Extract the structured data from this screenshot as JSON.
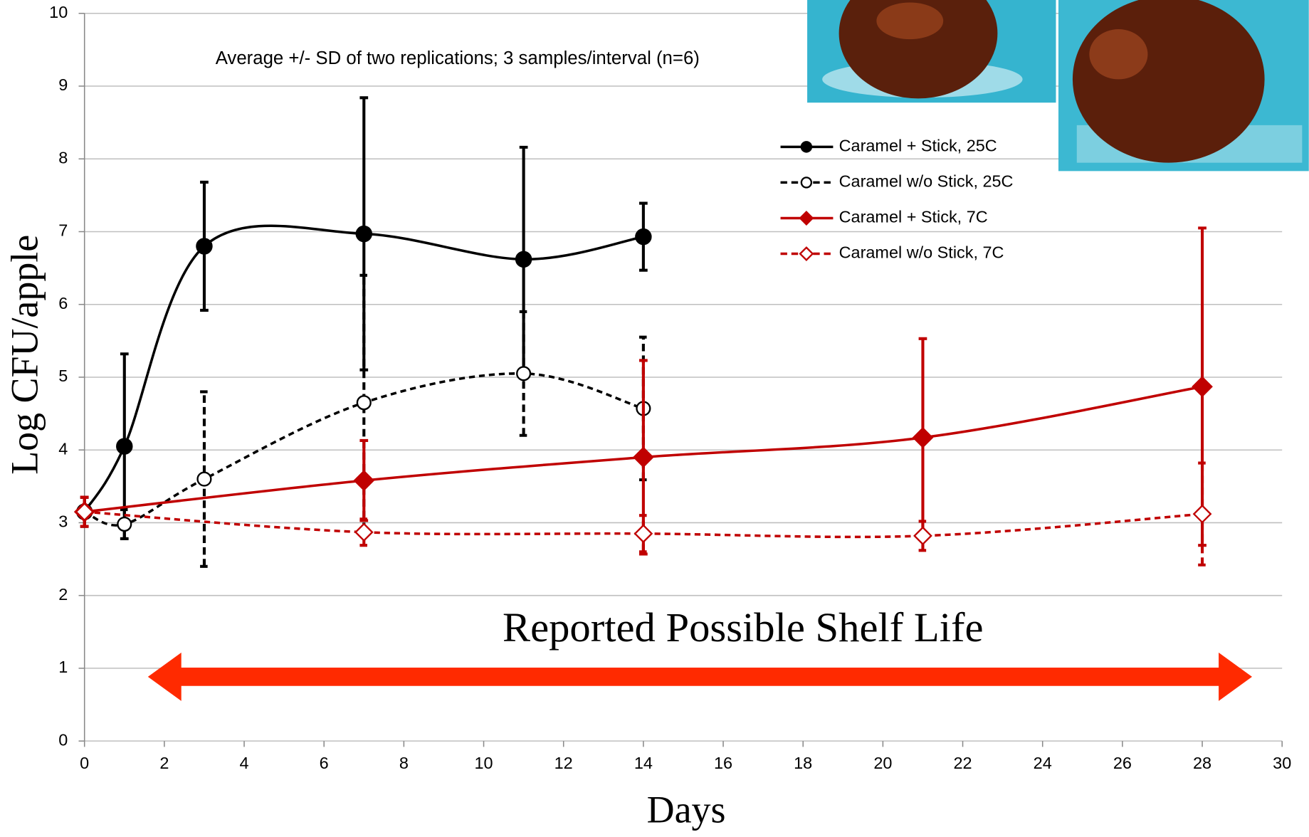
{
  "chart_data": {
    "type": "line",
    "subtitle": "Average +/- SD of two replications; 3 samples/interval (n=6)",
    "annotation": "Reported Possible Shelf Life",
    "x_label": "Days",
    "y_label": "Log CFU/apple",
    "xlim": [
      0,
      30
    ],
    "xticks": [
      0,
      2,
      4,
      6,
      8,
      10,
      12,
      14,
      16,
      18,
      20,
      22,
      24,
      26,
      28,
      30
    ],
    "ylim": [
      0,
      10
    ],
    "yticks": [
      0,
      1,
      2,
      3,
      4,
      5,
      6,
      7,
      8,
      9,
      10
    ],
    "grid": true,
    "legend": "upper right",
    "series": [
      {
        "name": "Caramel + Stick, 25C",
        "color": "#000000",
        "marker": "circle",
        "filled": true,
        "dashed": false,
        "x": [
          0,
          1,
          3,
          7,
          11,
          14
        ],
        "values": [
          3.15,
          4.05,
          6.8,
          6.97,
          6.62,
          6.93
        ],
        "errors": [
          0.2,
          1.27,
          0.88,
          1.87,
          1.54,
          0.46
        ]
      },
      {
        "name": "Caramel w/o Stick, 25C",
        "color": "#000000",
        "marker": "circle",
        "filled": false,
        "dashed": true,
        "x": [
          0,
          1,
          3,
          7,
          11,
          14
        ],
        "values": [
          3.15,
          2.98,
          3.6,
          4.65,
          5.05,
          4.57
        ],
        "errors": [
          0.2,
          0.2,
          1.2,
          1.75,
          0.85,
          0.98
        ]
      },
      {
        "name": "Caramel + Stick, 7C",
        "color": "#c00000",
        "marker": "diamond",
        "filled": true,
        "dashed": false,
        "x": [
          0,
          7,
          14,
          21,
          28
        ],
        "values": [
          3.15,
          3.58,
          3.9,
          4.17,
          4.87
        ],
        "errors": [
          0.2,
          0.55,
          1.33,
          1.36,
          2.18
        ]
      },
      {
        "name": "Caramel w/o Stick, 7C",
        "color": "#c00000",
        "marker": "diamond",
        "filled": false,
        "dashed": true,
        "x": [
          0,
          7,
          14,
          21,
          28
        ],
        "values": [
          3.15,
          2.87,
          2.85,
          2.82,
          3.12
        ],
        "errors": [
          0.2,
          0.18,
          0.25,
          0.2,
          0.7
        ]
      }
    ]
  }
}
